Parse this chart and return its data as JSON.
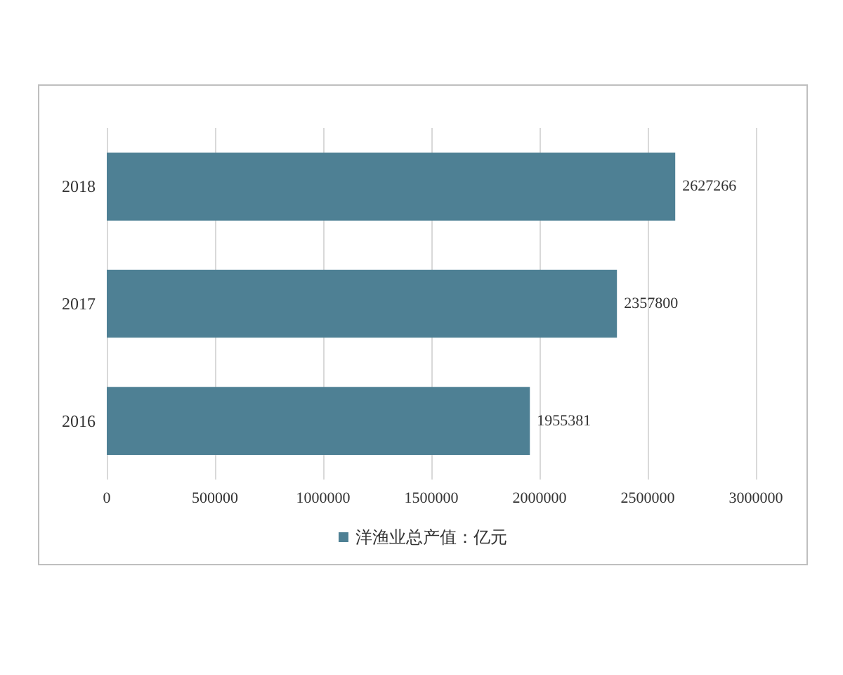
{
  "chart_data": {
    "type": "bar",
    "orientation": "horizontal",
    "categories": [
      "2018",
      "2017",
      "2016"
    ],
    "series": [
      {
        "name": "洋渔业总产值：亿元",
        "color": "#4e8094",
        "values": [
          2627266,
          2357800,
          1955381
        ]
      }
    ],
    "xlim": [
      0,
      3000000
    ],
    "xticks": [
      0,
      500000,
      1000000,
      1500000,
      2000000,
      2500000,
      3000000
    ],
    "grid": "x",
    "legend": "bottom",
    "data_labels": true
  }
}
